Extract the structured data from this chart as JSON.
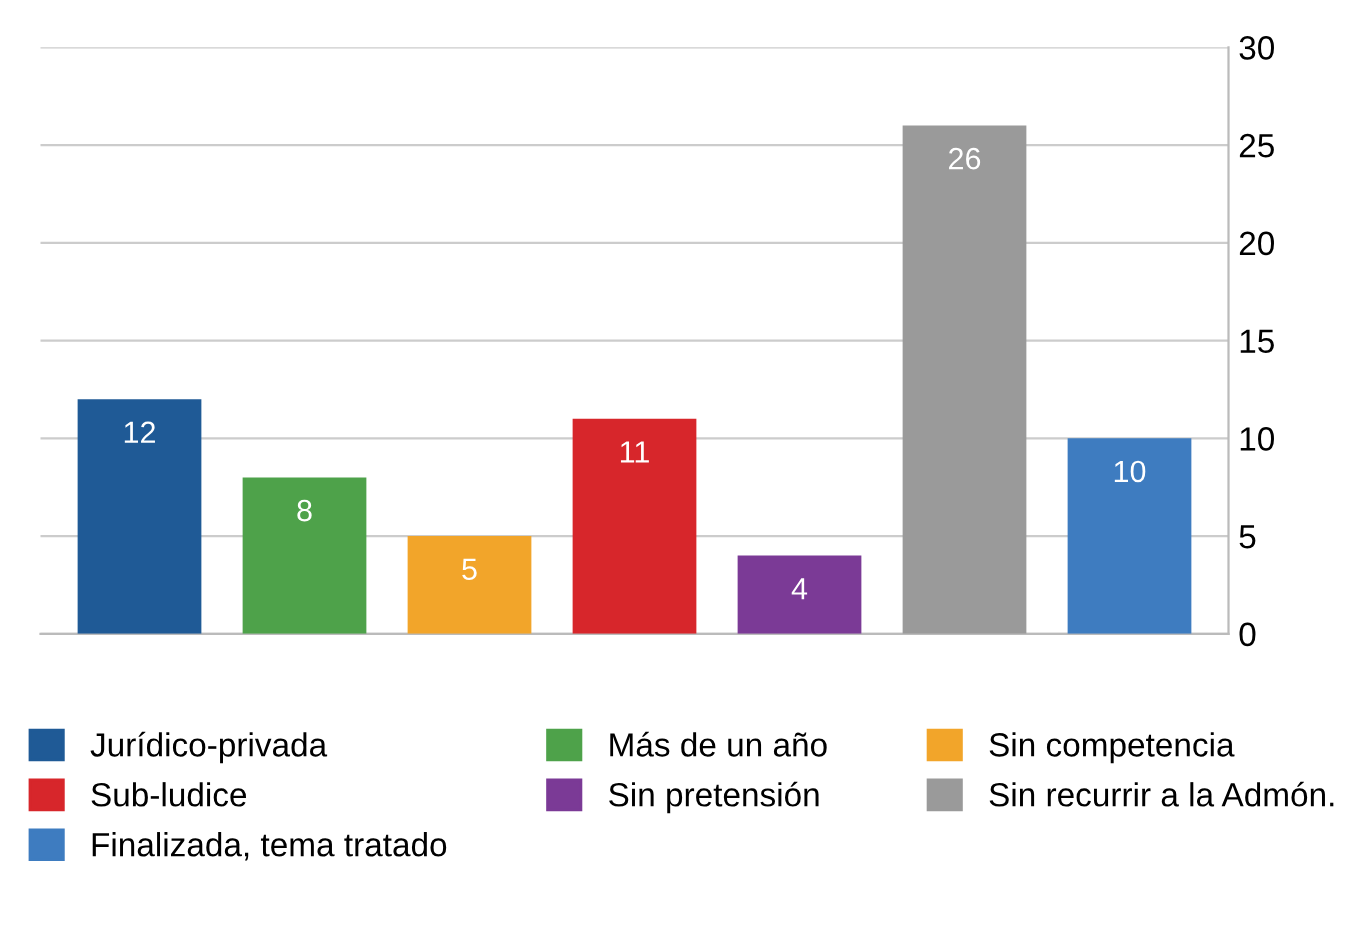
{
  "chart_data": {
    "type": "bar",
    "categories": [
      null,
      null,
      null,
      null,
      null,
      null,
      null
    ],
    "series": [
      {
        "name": "Jurídico-privada",
        "color": "#1f5a96",
        "values": [
          12,
          null,
          null,
          null,
          null,
          null,
          null
        ]
      },
      {
        "name": "Más de un año",
        "color": "#4ea24a",
        "values": [
          null,
          8,
          null,
          null,
          null,
          null,
          null
        ]
      },
      {
        "name": "Sin competencia",
        "color": "#f2a52a",
        "values": [
          null,
          null,
          5,
          null,
          null,
          null,
          null
        ]
      },
      {
        "name": "Sub-ludice",
        "color": "#d7262b",
        "values": [
          null,
          null,
          null,
          11,
          null,
          null,
          null
        ]
      },
      {
        "name": "Sin pretensión",
        "color": "#7b3a96",
        "values": [
          null,
          null,
          null,
          null,
          4,
          null,
          null
        ]
      },
      {
        "name": "Sin recurrir a la Admón.",
        "color": "#9a9a9a",
        "values": [
          null,
          null,
          null,
          null,
          null,
          26,
          null
        ]
      },
      {
        "name": "Finalizada, tema tratado",
        "color": "#3e7cc0",
        "values": [
          null,
          null,
          null,
          null,
          null,
          null,
          10
        ]
      }
    ],
    "ylim": [
      0,
      30
    ],
    "yticks": [
      0,
      5,
      10,
      15,
      20,
      25,
      30
    ],
    "grid": "y",
    "data_labels": true,
    "legend": "bottom"
  }
}
